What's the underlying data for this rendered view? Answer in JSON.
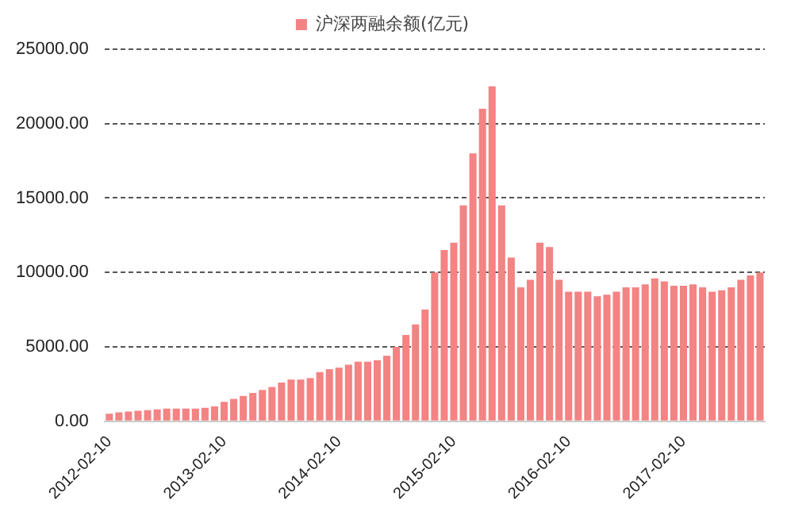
{
  "chart_data": {
    "type": "bar",
    "categories": [
      "2012-02-10",
      null,
      null,
      null,
      null,
      null,
      null,
      null,
      null,
      null,
      null,
      null,
      "2013-02-10",
      null,
      null,
      null,
      null,
      null,
      null,
      null,
      null,
      null,
      null,
      null,
      "2014-02-10",
      null,
      null,
      null,
      null,
      null,
      null,
      null,
      null,
      null,
      null,
      null,
      "2015-02-10",
      null,
      null,
      null,
      null,
      null,
      null,
      null,
      null,
      null,
      null,
      null,
      "2016-02-10",
      null,
      null,
      null,
      null,
      null,
      null,
      null,
      null,
      null,
      null,
      null,
      "2017-02-10",
      null,
      null,
      null,
      null,
      null,
      null,
      null,
      null
    ],
    "series": [
      {
        "name": "沪深两融余额(亿元)",
        "color": "#f48383",
        "values": [
          500,
          600,
          650,
          700,
          750,
          800,
          850,
          850,
          850,
          850,
          900,
          1000,
          1300,
          1500,
          1700,
          1900,
          2100,
          2300,
          2600,
          2800,
          2800,
          2900,
          3300,
          3500,
          3600,
          3800,
          4000,
          4000,
          4100,
          4400,
          5000,
          5800,
          6500,
          7500,
          10000,
          11500,
          12000,
          14500,
          18000,
          21000,
          22500,
          14500,
          11000,
          9000,
          9500,
          12000,
          11700,
          9500,
          8700,
          8700,
          8700,
          8400,
          8500,
          8700,
          9000,
          9000,
          9200,
          9600,
          9400,
          9100,
          9100,
          9200,
          9000,
          8700,
          8800,
          9000,
          9500,
          9800,
          10000
        ]
      }
    ],
    "ylim": [
      0,
      25000
    ],
    "yticks": [
      {
        "value": 0,
        "label": "0.00"
      },
      {
        "value": 5000,
        "label": "5000.00"
      },
      {
        "value": 10000,
        "label": "10000.00"
      },
      {
        "value": 15000,
        "label": "15000.00"
      },
      {
        "value": 20000,
        "label": "20000.00"
      },
      {
        "value": 25000,
        "label": "25000.00"
      }
    ],
    "grid": "y",
    "legend": "top"
  }
}
